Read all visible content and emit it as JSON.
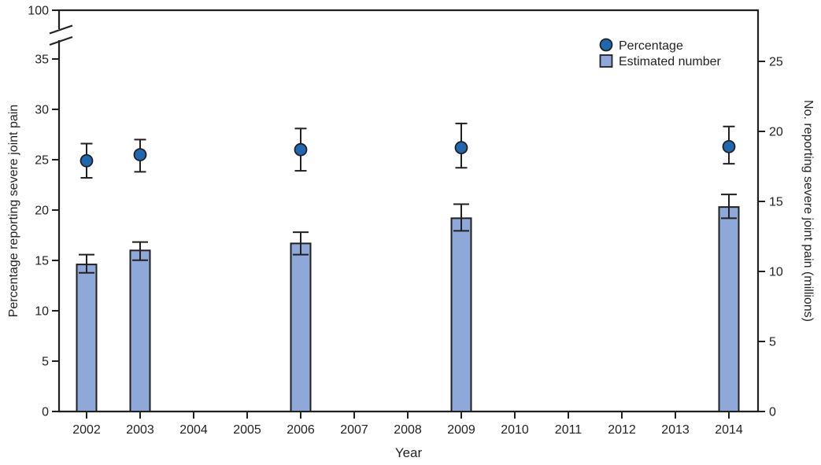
{
  "chart_data": {
    "type": "bar",
    "subtype": "dual_axis_bars_plus_points_with_error_bars",
    "title": "",
    "xlabel": "Year",
    "ylabel_left": "Percentage reporting severe joint pain",
    "ylabel_right": "No. reporting severe joint pain (millions)",
    "x_categories": [
      "2002",
      "2003",
      "2004",
      "2005",
      "2006",
      "2007",
      "2008",
      "2009",
      "2010",
      "2011",
      "2012",
      "2013",
      "2014"
    ],
    "left_axis": {
      "ticks": [
        0,
        5,
        10,
        15,
        20,
        25,
        30,
        35
      ],
      "break_label": "100",
      "has_break": true,
      "ylim_shown": [
        0,
        35
      ]
    },
    "right_axis": {
      "ticks": [
        0,
        5,
        10,
        15,
        20,
        25
      ],
      "ylim": [
        0,
        28.7
      ]
    },
    "grid": false,
    "legend": {
      "position": "top-right-inside",
      "entries": [
        {
          "label": "Percentage",
          "marker": "circle",
          "color": "#1e68b2"
        },
        {
          "label": "Estimated number",
          "marker": "square",
          "color": "#8ea9d9"
        }
      ]
    },
    "series": [
      {
        "name": "Percentage",
        "type": "scatter",
        "axis": "left",
        "marker": "circle",
        "color": "#1e68b2",
        "x": [
          "2002",
          "2003",
          "2006",
          "2009",
          "2014"
        ],
        "y": [
          24.9,
          25.5,
          26.0,
          26.2,
          26.3
        ],
        "ci_low": [
          23.2,
          23.8,
          23.9,
          24.2,
          24.6
        ],
        "ci_high": [
          26.6,
          27.0,
          28.1,
          28.6,
          28.3
        ]
      },
      {
        "name": "Estimated number",
        "type": "bar",
        "axis": "right",
        "color": "#8ea9d9",
        "x": [
          "2002",
          "2003",
          "2006",
          "2009",
          "2014"
        ],
        "y": [
          10.5,
          11.5,
          12.0,
          13.8,
          14.6
        ],
        "ci_low": [
          9.9,
          10.8,
          11.2,
          12.9,
          13.8
        ],
        "ci_high": [
          11.2,
          12.1,
          12.8,
          14.8,
          15.5
        ]
      }
    ],
    "colors": {
      "axis": "#231f20",
      "point_fill": "#1e68b2",
      "bar_fill": "#8ea9d9",
      "background": "#ffffff"
    }
  }
}
